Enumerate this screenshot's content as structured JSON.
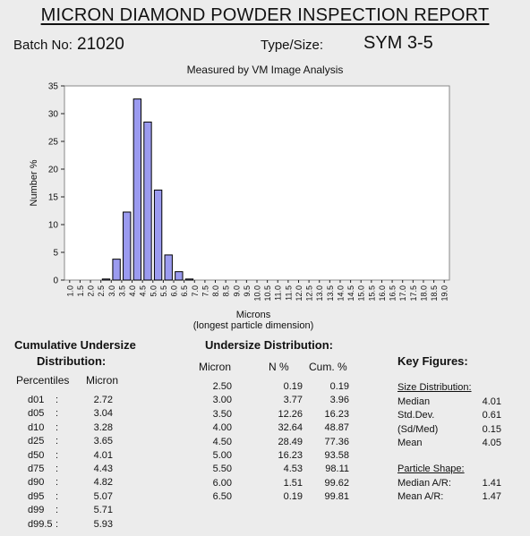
{
  "report": {
    "title": "MICRON DIAMOND POWDER INSPECTION REPORT",
    "batch_label": "Batch No:",
    "batch_value": "21020",
    "type_label": "Type/Size:",
    "type_value": "SYM 3-5"
  },
  "chart_data": {
    "type": "bar",
    "title": "Measured by VM Image Analysis",
    "xlabel": "Microns",
    "xlabel_sub": "(longest particle dimension)",
    "ylabel": "Number %",
    "ylim": [
      0,
      35
    ],
    "yticks": [
      "0",
      "5",
      "10",
      "15",
      "20",
      "25",
      "30",
      "35"
    ],
    "categories": [
      "1.0",
      "1.5",
      "2.0",
      "2.5",
      "3.0",
      "3.5",
      "4.0",
      "4.5",
      "5.0",
      "5.5",
      "6.0",
      "6.5",
      "7.0",
      "7.5",
      "8.0",
      "8.5",
      "9.0",
      "9.5",
      "10.0",
      "10.5",
      "11.0",
      "11.5",
      "12.0",
      "12.5",
      "13.0",
      "13.5",
      "14.0",
      "14.5",
      "15.0",
      "15.5",
      "16.0",
      "16.5",
      "17.0",
      "17.5",
      "18.0",
      "18.5",
      "19.0"
    ],
    "values": [
      0,
      0,
      0,
      0.19,
      3.77,
      12.26,
      32.64,
      28.49,
      16.23,
      4.53,
      1.51,
      0.19,
      0,
      0,
      0,
      0,
      0,
      0,
      0,
      0,
      0,
      0,
      0,
      0,
      0,
      0,
      0,
      0,
      0,
      0,
      0,
      0,
      0,
      0,
      0,
      0,
      0
    ],
    "bar_color": "#9b9bf0",
    "grid": false
  },
  "cumulative": {
    "heading_line1": "Cumulative Undersize",
    "heading_line2": "Distribution:",
    "col1": "Percentiles",
    "col2": "Micron",
    "rows": [
      {
        "p": "d01",
        "sep": ":",
        "v": "2.72"
      },
      {
        "p": "d05",
        "sep": ":",
        "v": "3.04"
      },
      {
        "p": "d10",
        "sep": ":",
        "v": "3.28"
      },
      {
        "p": "d25",
        "sep": ":",
        "v": "3.65"
      },
      {
        "p": "d50",
        "sep": ":",
        "v": "4.01"
      },
      {
        "p": "d75",
        "sep": ":",
        "v": "4.43"
      },
      {
        "p": "d90",
        "sep": ":",
        "v": "4.82"
      },
      {
        "p": "d95",
        "sep": ":",
        "v": "5.07"
      },
      {
        "p": "d99",
        "sep": ":",
        "v": "5.71"
      },
      {
        "p": "d99.5",
        "sep": ":",
        "v": "5.93"
      }
    ]
  },
  "undersize": {
    "heading": "Undersize Distribution:",
    "col1": "Micron",
    "col2": "N %",
    "col3": "Cum. %",
    "rows": [
      {
        "m": "2.50",
        "n": "0.19",
        "c": "0.19"
      },
      {
        "m": "3.00",
        "n": "3.77",
        "c": "3.96"
      },
      {
        "m": "3.50",
        "n": "12.26",
        "c": "16.23"
      },
      {
        "m": "4.00",
        "n": "32.64",
        "c": "48.87"
      },
      {
        "m": "4.50",
        "n": "28.49",
        "c": "77.36"
      },
      {
        "m": "5.00",
        "n": "16.23",
        "c": "93.58"
      },
      {
        "m": "5.50",
        "n": "4.53",
        "c": "98.11"
      },
      {
        "m": "6.00",
        "n": "1.51",
        "c": "99.62"
      },
      {
        "m": "6.50",
        "n": "0.19",
        "c": "99.81"
      }
    ]
  },
  "key_figures": {
    "heading": "Key Figures:",
    "size_heading": "Size Distribution:",
    "size_rows": [
      {
        "k": "Median",
        "v": "4.01"
      },
      {
        "k": "Std.Dev.",
        "v": "0.61"
      },
      {
        "k": "(Sd/Med)",
        "v": "0.15"
      },
      {
        "k": "Mean",
        "v": "4.05"
      }
    ],
    "shape_heading": "Particle Shape:",
    "shape_rows": [
      {
        "k": "Median A/R:",
        "v": "1.41"
      },
      {
        "k": "Mean A/R:",
        "v": "1.47"
      }
    ]
  }
}
